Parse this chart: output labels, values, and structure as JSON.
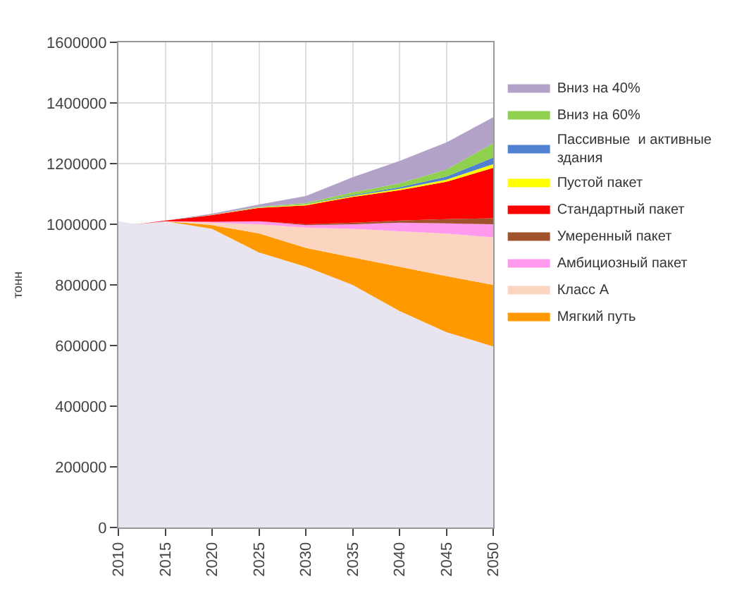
{
  "chart_data": {
    "type": "area",
    "stacked": true,
    "ylabel": "тонн",
    "x": [
      2010,
      2012,
      2015,
      2020,
      2025,
      2030,
      2035,
      2040,
      2045,
      2050
    ],
    "xlim": [
      2010,
      2050
    ],
    "xticks": [
      2010,
      2015,
      2020,
      2025,
      2030,
      2035,
      2040,
      2045,
      2050
    ],
    "ylim": [
      0,
      1600000
    ],
    "yticks": [
      0,
      200000,
      400000,
      600000,
      800000,
      1000000,
      1200000,
      1400000,
      1600000
    ],
    "grid": true,
    "legend": "right",
    "series": [
      {
        "color": "#e8e4f0",
        "values": [
          1010000,
          1000000,
          1010000,
          985000,
          907000,
          860000,
          800000,
          714000,
          644000,
          597000
        ]
      },
      {
        "name": "Мягкий путь",
        "color": "#ff9900",
        "values": [
          0,
          0,
          0,
          12000,
          63000,
          62000,
          91000,
          146000,
          185000,
          203000
        ]
      },
      {
        "name": "Класс А",
        "color": "#fcd5c0",
        "values": [
          0,
          0,
          0,
          8000,
          30000,
          67000,
          94000,
          117000,
          140000,
          157000
        ]
      },
      {
        "name": "Амбициозный пакет",
        "color": "#ff99ee",
        "values": [
          0,
          0,
          0,
          3000,
          10000,
          8000,
          15000,
          28000,
          34000,
          43000
        ]
      },
      {
        "name": "Умеренный пакет",
        "color": "#a0522d",
        "values": [
          0,
          0,
          0,
          0,
          0,
          3000,
          5000,
          7000,
          14000,
          20000
        ]
      },
      {
        "name": "Стандартный пакет",
        "color": "#ff0000",
        "values": [
          0,
          0,
          2000,
          22000,
          44000,
          62000,
          85000,
          100000,
          123000,
          166000
        ]
      },
      {
        "name": "Пустой пакет",
        "color": "#ffff00",
        "values": [
          0,
          0,
          0,
          1000,
          2000,
          3000,
          3000,
          5000,
          7000,
          12000
        ]
      },
      {
        "name": "Пассивные  и активные здания",
        "color": "#4f81d0",
        "values": [
          0,
          0,
          0,
          0,
          1000,
          1000,
          3000,
          5000,
          10000,
          22000
        ]
      },
      {
        "name": "Вниз на 60%",
        "color": "#8fd14f",
        "values": [
          0,
          0,
          0,
          0,
          1000,
          4000,
          9000,
          13000,
          23000,
          47000
        ]
      },
      {
        "name": "Вниз на 40%",
        "color": "#b3a2c7",
        "values": [
          0,
          0,
          0,
          4000,
          7000,
          23000,
          50000,
          74000,
          90000,
          86000
        ]
      }
    ]
  }
}
